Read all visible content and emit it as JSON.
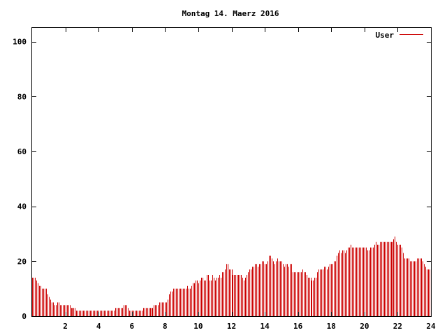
{
  "chart_data": {
    "type": "bar",
    "title": "Montag 14. Maerz 2016",
    "xlabel": "",
    "ylabel": "",
    "xlim": [
      0,
      24
    ],
    "ylim": [
      0,
      105
    ],
    "x_ticks": [
      "2",
      "4",
      "6",
      "8",
      "10",
      "12",
      "14",
      "16",
      "18",
      "20",
      "22",
      "24"
    ],
    "y_ticks": [
      "0",
      "20",
      "40",
      "60",
      "80",
      "100"
    ],
    "grid": false,
    "legend_position": "top-right",
    "series": [
      {
        "name": "User",
        "color": "#cc0000",
        "step_minutes": 5,
        "values": [
          14,
          14,
          14,
          13,
          12,
          11,
          11,
          10,
          10,
          10,
          10,
          8,
          7,
          6,
          5,
          5,
          4,
          4,
          5,
          5,
          4,
          4,
          4,
          4,
          4,
          4,
          4,
          4,
          3,
          3,
          3,
          3,
          2,
          2,
          2,
          2,
          2,
          2,
          2,
          2,
          2,
          2,
          2,
          2,
          2,
          2,
          2,
          2,
          2,
          2,
          2,
          2,
          2,
          2,
          2,
          2,
          2,
          2,
          2,
          2,
          3,
          3,
          3,
          3,
          3,
          3,
          4,
          4,
          4,
          3,
          2,
          2,
          2,
          2,
          2,
          2,
          2,
          2,
          2,
          2,
          3,
          3,
          3,
          3,
          3,
          3,
          3,
          3,
          4,
          4,
          4,
          4,
          5,
          5,
          5,
          5,
          5,
          5,
          6,
          8,
          9,
          9,
          10,
          10,
          10,
          10,
          10,
          10,
          10,
          10,
          10,
          10,
          11,
          10,
          10,
          11,
          12,
          12,
          13,
          13,
          12,
          13,
          14,
          14,
          13,
          13,
          15,
          15,
          13,
          13,
          15,
          14,
          13,
          14,
          14,
          15,
          14,
          16,
          16,
          17,
          19,
          19,
          17,
          17,
          17,
          15,
          15,
          15,
          15,
          15,
          15,
          15,
          14,
          13,
          14,
          15,
          16,
          17,
          17,
          18,
          18,
          19,
          19,
          18,
          19,
          19,
          20,
          20,
          19,
          19,
          20,
          22,
          22,
          21,
          20,
          19,
          20,
          21,
          20,
          20,
          20,
          19,
          18,
          19,
          19,
          18,
          19,
          19,
          16,
          16,
          16,
          16,
          16,
          16,
          16,
          17,
          16,
          16,
          15,
          14,
          14,
          14,
          13,
          13,
          14,
          14,
          16,
          17,
          17,
          17,
          17,
          18,
          18,
          17,
          18,
          19,
          19,
          19,
          20,
          20,
          22,
          23,
          24,
          23,
          24,
          24,
          23,
          24,
          25,
          25,
          26,
          25,
          25,
          25,
          25,
          25,
          25,
          25,
          25,
          25,
          25,
          25,
          24,
          24,
          25,
          25,
          25,
          26,
          27,
          26,
          26,
          27,
          27,
          27,
          27,
          27,
          27,
          27,
          27,
          27,
          27,
          28,
          29,
          27,
          26,
          26,
          26,
          25,
          23,
          21,
          21,
          21,
          21,
          20,
          20,
          20,
          20,
          20,
          21,
          21,
          21,
          21,
          20,
          19,
          18,
          17,
          17,
          17
        ]
      }
    ]
  }
}
